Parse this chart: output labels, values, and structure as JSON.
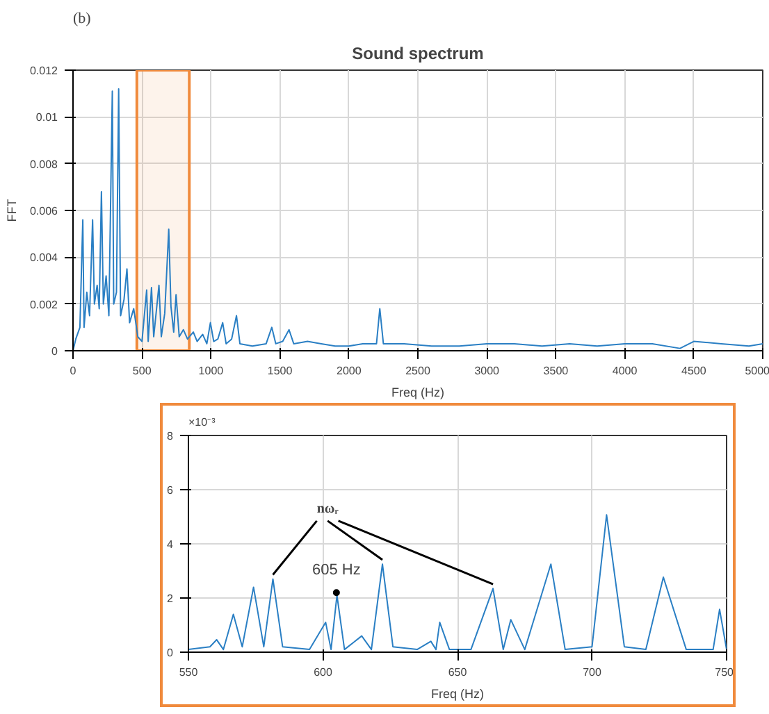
{
  "chart_data": [
    {
      "type": "line",
      "title": "Sound spectrum",
      "xlabel": "Freq (Hz)",
      "ylabel": "FFT",
      "annotations": [
        "(b)"
      ],
      "grid": true,
      "xlim": [
        0,
        5000
      ],
      "xticks": [
        0,
        500,
        1000,
        1500,
        2000,
        2500,
        3000,
        3500,
        4000,
        4500,
        5000
      ],
      "ylim": [
        0,
        0.012
      ],
      "yticks": [
        0,
        0.002,
        0.004,
        0.006,
        0.008,
        0.01,
        0.012
      ],
      "bands": [
        {
          "axis": "x",
          "from": 463,
          "to": 843,
          "color": "#f08a3c"
        }
      ],
      "series": [
        {
          "color": "#2a7fc4",
          "x": [
            0,
            20,
            50,
            71,
            80,
            100,
            120,
            142,
            155,
            175,
            190,
            206,
            220,
            240,
            260,
            285,
            295,
            315,
            331,
            345,
            370,
            391,
            410,
            440,
            470,
            500,
            534,
            545,
            569,
            585,
            623,
            640,
            665,
            694,
            710,
            730,
            747,
            770,
            800,
            830,
            872,
            900,
            940,
            970,
            996,
            1020,
            1050,
            1085,
            1110,
            1150,
            1185,
            1210,
            1300,
            1400,
            1441,
            1470,
            1520,
            1566,
            1600,
            1700,
            1800,
            1900,
            2000,
            2100,
            2200,
            2224,
            2250,
            2400,
            2600,
            2800,
            3000,
            3200,
            3400,
            3600,
            3800,
            4000,
            4200,
            4400,
            4500,
            4700,
            4900,
            5000
          ],
          "values": [
            0,
            0.0005,
            0.001,
            0.0056,
            0.001,
            0.0025,
            0.0015,
            0.0056,
            0.002,
            0.0028,
            0.0018,
            0.0068,
            0.002,
            0.0032,
            0.0015,
            0.0111,
            0.002,
            0.0025,
            0.0112,
            0.0015,
            0.0022,
            0.0035,
            0.0012,
            0.0018,
            0.0006,
            0.0004,
            0.0026,
            0.0004,
            0.0027,
            0.0006,
            0.0028,
            0.0006,
            0.0016,
            0.0052,
            0.0019,
            0.0008,
            0.0024,
            0.0006,
            0.0009,
            0.0005,
            0.0008,
            0.0004,
            0.0007,
            0.0003,
            0.0012,
            0.0004,
            0.0005,
            0.0012,
            0.0003,
            0.0005,
            0.0015,
            0.0003,
            0.0002,
            0.0003,
            0.001,
            0.0003,
            0.0004,
            0.0009,
            0.0003,
            0.0004,
            0.0003,
            0.0002,
            0.0002,
            0.0003,
            0.0003,
            0.0018,
            0.0003,
            0.0003,
            0.0002,
            0.0002,
            0.0003,
            0.0003,
            0.0002,
            0.0003,
            0.0002,
            0.0003,
            0.0003,
            0.0001,
            0.0004,
            0.0003,
            0.0002,
            0.0003
          ]
        }
      ]
    },
    {
      "type": "line",
      "xlabel": "Freq (Hz)",
      "grid": true,
      "annotations": [
        "×10⁻³",
        {
          "text": "605 Hz",
          "x": 605,
          "y": 2.2
        },
        {
          "text": "nωᵣ",
          "x": 622.1,
          "y": 3.25
        }
      ],
      "xlim": [
        550,
        750
      ],
      "xticks": [
        550,
        600,
        650,
        700,
        750
      ],
      "ylim": [
        0,
        8
      ],
      "yticks": [
        0,
        2,
        4,
        6,
        8
      ],
      "series": [
        {
          "color": "#2a7fc4",
          "x": [
            550,
            558,
            560.5,
            563,
            566.7,
            570,
            574.2,
            578,
            581.4,
            585,
            595,
            601,
            603,
            605.2,
            608,
            614.4,
            618,
            622.1,
            626,
            635,
            640.1,
            642,
            643.4,
            647,
            655,
            663.2,
            667,
            669.8,
            675,
            684.7,
            690,
            700,
            705.4,
            712,
            720,
            726.5,
            735,
            745,
            747.4,
            750
          ],
          "values": [
            0.1,
            0.2,
            0.46,
            0.1,
            1.4,
            0.2,
            2.4,
            0.2,
            2.7,
            0.2,
            0.1,
            1.1,
            0.1,
            2.1,
            0.1,
            0.6,
            0.1,
            3.25,
            0.2,
            0.1,
            0.4,
            0.1,
            1.1,
            0.1,
            0.1,
            2.35,
            0.1,
            1.2,
            0.1,
            3.25,
            0.1,
            0.2,
            5.07,
            0.2,
            0.1,
            2.77,
            0.1,
            0.1,
            1.58,
            0.1
          ]
        }
      ]
    }
  ]
}
